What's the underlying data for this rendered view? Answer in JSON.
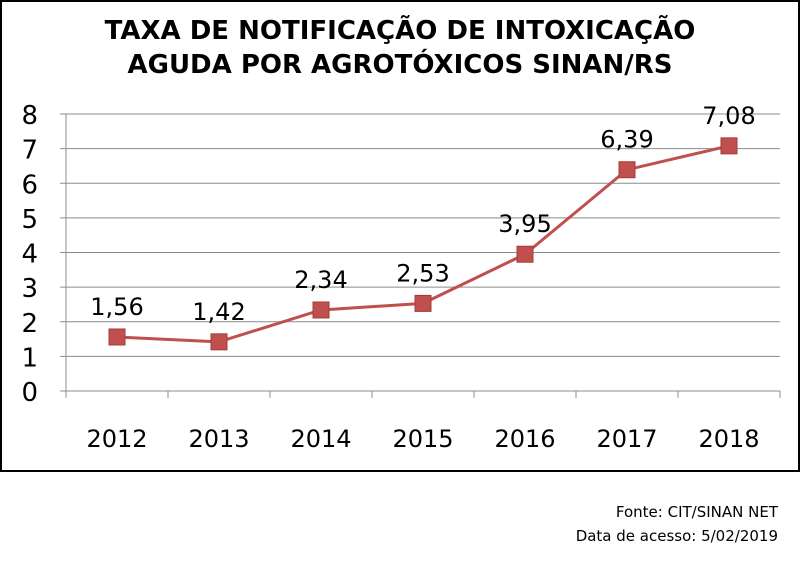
{
  "chart_data": {
    "type": "line",
    "title_lines": [
      "TAXA DE NOTIFICAÇÃO DE INTOXICAÇÃO",
      "AGUDA POR AGROTÓXICOS SINAN/RS"
    ],
    "categories": [
      "2012",
      "2013",
      "2014",
      "2015",
      "2016",
      "2017",
      "2018"
    ],
    "series": [
      {
        "values": [
          1.56,
          1.42,
          2.34,
          2.53,
          3.95,
          6.39,
          7.08
        ],
        "labels": [
          "1,56",
          "1,42",
          "2,34",
          "2,53",
          "3,95",
          "6,39",
          "7,08"
        ],
        "color": "#C0504D"
      }
    ],
    "y_ticks": [
      "0",
      "1",
      "2",
      "3",
      "4",
      "5",
      "6",
      "7",
      "8"
    ],
    "ylim": [
      0,
      8
    ],
    "grid": true,
    "legend": "none",
    "marker": "square"
  },
  "footer": {
    "source": "Fonte: CIT/SINAN NET",
    "access_date": "Data de acesso: 5/02/2019"
  }
}
